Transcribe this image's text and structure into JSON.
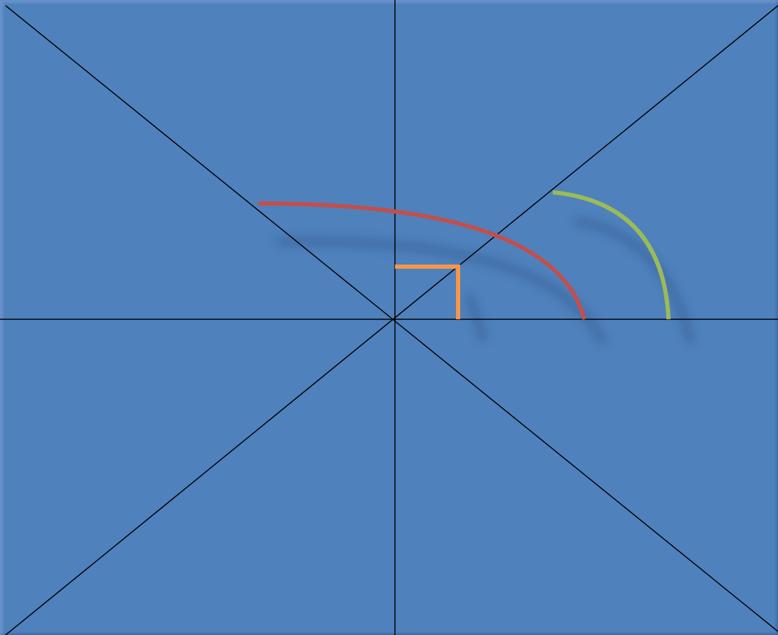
{
  "diagram": {
    "background_color": "#4f81bd",
    "line_color": "#000000",
    "shapes": {
      "right_angle_marker": {
        "color": "#f79646",
        "angle_degrees": 90
      },
      "obtuse_arc": {
        "color": "#c0504d"
      },
      "acute_arc": {
        "color": "#9bbb59"
      }
    }
  }
}
